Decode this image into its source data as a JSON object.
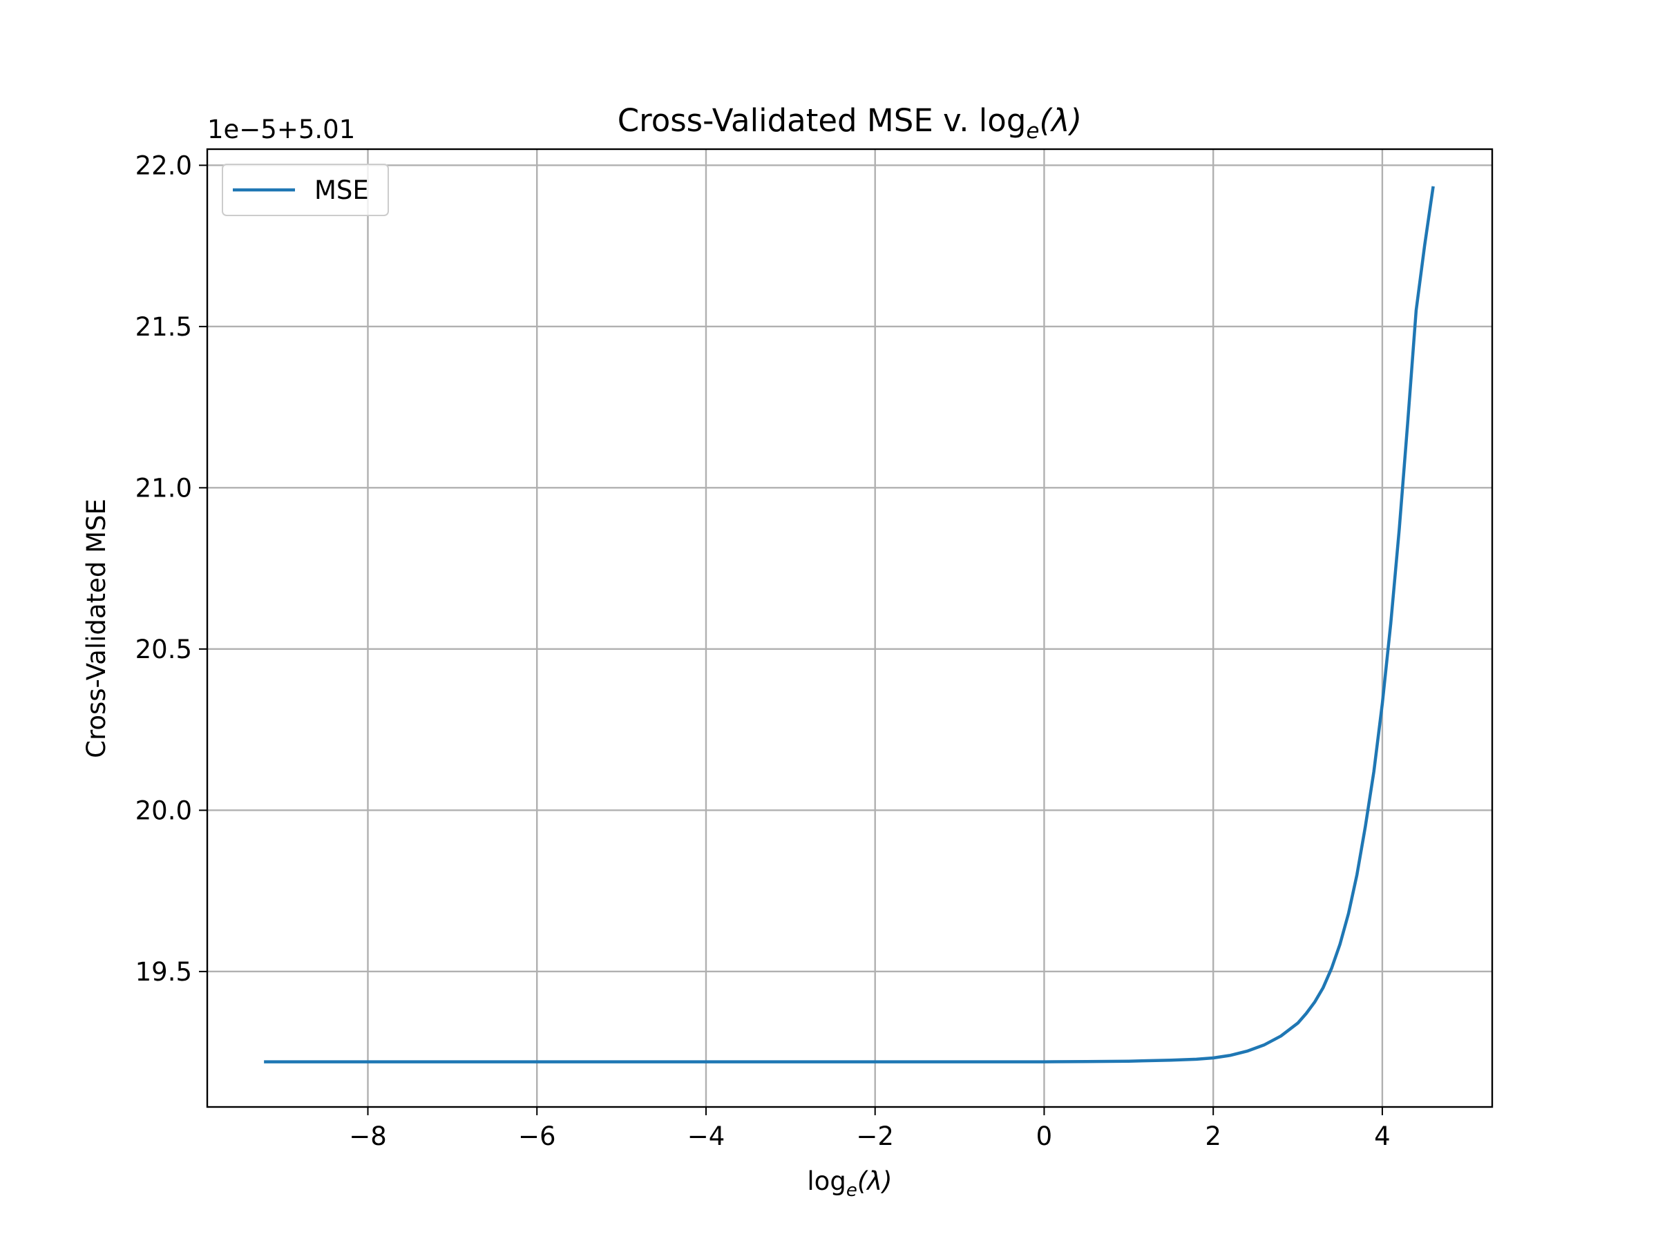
{
  "chart_data": {
    "type": "line",
    "title": "Cross-Validated MSE v. log",
    "title_sub": "e",
    "title_tail": "(λ)",
    "xlabel": "log",
    "xlabel_sub": "e",
    "xlabel_tail": "(λ)",
    "ylabel": "Cross-Validated MSE",
    "y_offset_label": "1e−5+5.01",
    "y_offset_text": "1e−5+5.01",
    "xlim": [
      -9.9,
      5.3
    ],
    "ylim": [
      19.08,
      22.05
    ],
    "x_ticks": [
      -8,
      -6,
      -4,
      -2,
      0,
      2,
      4
    ],
    "x_tick_labels": [
      "−8",
      "−6",
      "−4",
      "−2",
      "0",
      "2",
      "4"
    ],
    "y_ticks": [
      19.5,
      20.0,
      20.5,
      21.0,
      21.5,
      22.0
    ],
    "y_tick_labels": [
      "19.5",
      "20.0",
      "20.5",
      "21.0",
      "21.5",
      "22.0"
    ],
    "grid": true,
    "legend_position": "top-left",
    "series": [
      {
        "name": "MSE",
        "color": "#1f77b4",
        "x": [
          -9.21,
          -8,
          -6,
          -4,
          -2,
          0,
          0.5,
          1.0,
          1.5,
          1.8,
          2.0,
          2.2,
          2.4,
          2.6,
          2.8,
          3.0,
          3.1,
          3.2,
          3.3,
          3.4,
          3.5,
          3.6,
          3.7,
          3.8,
          3.9,
          4.0,
          4.1,
          4.2,
          4.3,
          4.4,
          4.5,
          4.6
        ],
        "y": [
          19.22,
          19.22,
          19.22,
          19.22,
          19.22,
          19.22,
          19.221,
          19.222,
          19.225,
          19.228,
          19.232,
          19.24,
          19.253,
          19.272,
          19.3,
          19.34,
          19.37,
          19.405,
          19.45,
          19.51,
          19.585,
          19.68,
          19.8,
          19.95,
          20.12,
          20.33,
          20.58,
          20.87,
          21.2,
          21.55,
          21.75,
          21.93
        ]
      }
    ]
  }
}
